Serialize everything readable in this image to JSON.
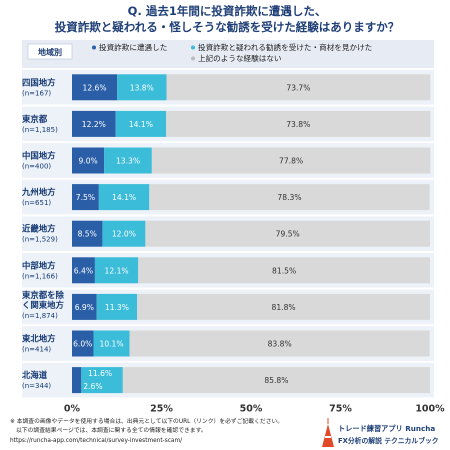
{
  "title_line1": "Q. 過去1年間に投資詐欺に遭遇した、",
  "title_line2": "投資詐欺と疑われる・怪しそうな勧誘を受けた経験はありますか？",
  "colors": {
    "series1": "#2a5fa8",
    "series2": "#3bbcd9",
    "series3": "#d9d9d9",
    "header_bg": "#e6ebf4",
    "row_bg": "#edf2f9",
    "title": "#1f3f77"
  },
  "chart_data": {
    "type": "bar",
    "orientation": "horizontal",
    "stacked": true,
    "category_header": "地域別",
    "categories": [
      {
        "name": "四国地方",
        "n": "(n=167)"
      },
      {
        "name": "東京都",
        "n": "(n=1,185)"
      },
      {
        "name": "中国地方",
        "n": "(n=400)"
      },
      {
        "name": "九州地方",
        "n": "(n=651)"
      },
      {
        "name": "近畿地方",
        "n": "(n=1,529)"
      },
      {
        "name": "中部地方",
        "n": "(n=1,166)"
      },
      {
        "name": "東京都を除く関東地方",
        "n": "(n=1,874)"
      },
      {
        "name": "東北地方",
        "n": "(n=414)"
      },
      {
        "name": "北海道",
        "n": "(n=344)"
      }
    ],
    "series": [
      {
        "name": "投資詐欺に遭遇した",
        "values": [
          12.6,
          12.2,
          9.0,
          7.5,
          8.5,
          6.4,
          6.9,
          6.0,
          2.6
        ]
      },
      {
        "name": "投資詐欺と疑われる勧誘を受けた・商材を見かけた",
        "values": [
          13.8,
          14.1,
          13.3,
          14.1,
          12.0,
          12.1,
          11.3,
          10.1,
          11.6
        ]
      },
      {
        "name": "上記のような経験はない",
        "values": [
          73.7,
          73.8,
          77.8,
          78.3,
          79.5,
          81.5,
          81.8,
          83.8,
          85.8
        ]
      }
    ],
    "value_labels": [
      [
        "12.6%",
        "13.8%",
        "73.7%"
      ],
      [
        "12.2%",
        "14.1%",
        "73.8%"
      ],
      [
        "9.0%",
        "13.3%",
        "77.8%"
      ],
      [
        "7.5%",
        "14.1%",
        "78.3%"
      ],
      [
        "8.5%",
        "12.0%",
        "79.5%"
      ],
      [
        "6.4%",
        "12.1%",
        "81.5%"
      ],
      [
        "6.9%",
        "11.3%",
        "81.8%"
      ],
      [
        "6.0%",
        "10.1%",
        "83.8%"
      ],
      [
        "2.6%",
        "11.6%",
        "85.8%"
      ]
    ],
    "xlim": [
      0,
      100
    ],
    "xticks": [
      "0%",
      "25%",
      "50%",
      "75%",
      "100%"
    ],
    "legend_position": "top"
  },
  "footer": {
    "line1": "※ 本調査の画像やデータを使用する場合は、出典元として以下のURL（リンク）を必ずご記載ください。",
    "line2": "以下の調査結果ページでは、本調査に関する全ての情報を確認できます。",
    "line3": "https://runcha-app.com/technical/survey-investment-scam/"
  },
  "logo": {
    "line1": "トレード練習アプリ  Runcha",
    "line2": "FX分析の解説  テクニカルブック"
  }
}
